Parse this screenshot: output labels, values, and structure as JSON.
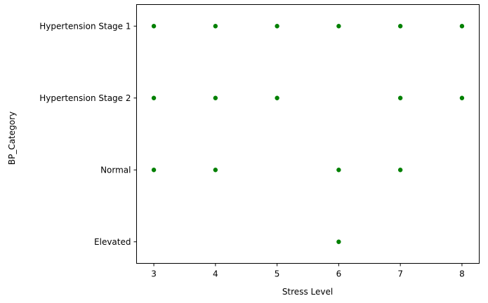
{
  "chart_data": {
    "type": "scatter",
    "title": "",
    "xlabel": "Stress Level",
    "ylabel": "BP_Category",
    "x_ticks": [
      3,
      4,
      5,
      6,
      7,
      8
    ],
    "y_categories": [
      "Elevated",
      "Normal",
      "Hypertension Stage 2",
      "Hypertension Stage 1"
    ],
    "xlim": [
      2.72,
      8.28
    ],
    "grid": false,
    "legend": "none",
    "series": [
      {
        "color": "#008000",
        "points": [
          {
            "x": 3,
            "y": "Hypertension Stage 1"
          },
          {
            "x": 4,
            "y": "Hypertension Stage 1"
          },
          {
            "x": 5,
            "y": "Hypertension Stage 1"
          },
          {
            "x": 6,
            "y": "Hypertension Stage 1"
          },
          {
            "x": 7,
            "y": "Hypertension Stage 1"
          },
          {
            "x": 8,
            "y": "Hypertension Stage 1"
          },
          {
            "x": 3,
            "y": "Hypertension Stage 2"
          },
          {
            "x": 4,
            "y": "Hypertension Stage 2"
          },
          {
            "x": 5,
            "y": "Hypertension Stage 2"
          },
          {
            "x": 7,
            "y": "Hypertension Stage 2"
          },
          {
            "x": 8,
            "y": "Hypertension Stage 2"
          },
          {
            "x": 3,
            "y": "Normal"
          },
          {
            "x": 4,
            "y": "Normal"
          },
          {
            "x": 6,
            "y": "Normal"
          },
          {
            "x": 7,
            "y": "Normal"
          },
          {
            "x": 6,
            "y": "Elevated"
          }
        ]
      }
    ]
  }
}
